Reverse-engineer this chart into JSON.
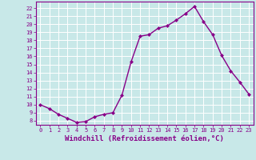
{
  "x": [
    0,
    1,
    2,
    3,
    4,
    5,
    6,
    7,
    8,
    9,
    10,
    11,
    12,
    13,
    14,
    15,
    16,
    17,
    18,
    19,
    20,
    21,
    22,
    23
  ],
  "y": [
    10,
    9.5,
    8.8,
    8.3,
    7.8,
    7.9,
    8.5,
    8.8,
    9.0,
    11.2,
    15.3,
    18.5,
    18.7,
    19.5,
    19.8,
    20.5,
    21.3,
    22.2,
    20.3,
    18.7,
    16.1,
    14.2,
    12.8,
    11.3
  ],
  "line_color": "#880088",
  "marker": "D",
  "marker_size": 2,
  "linewidth": 1.0,
  "xlabel": "Windchill (Refroidissement éolien,°C)",
  "xlabel_fontsize": 6.5,
  "ylabel_ticks": [
    8,
    9,
    10,
    11,
    12,
    13,
    14,
    15,
    16,
    17,
    18,
    19,
    20,
    21,
    22
  ],
  "ylim": [
    7.5,
    22.8
  ],
  "xlim": [
    -0.5,
    23.5
  ],
  "xtick_labels": [
    "0",
    "1",
    "2",
    "3",
    "4",
    "5",
    "6",
    "7",
    "8",
    "9",
    "10",
    "11",
    "12",
    "13",
    "14",
    "15",
    "16",
    "17",
    "18",
    "19",
    "20",
    "21",
    "22",
    "23"
  ],
  "background_color": "#c8e8e8",
  "grid_color": "#ffffff",
  "tick_fontsize": 5.0,
  "spine_color": "#880088",
  "axis_line_color": "#880088"
}
